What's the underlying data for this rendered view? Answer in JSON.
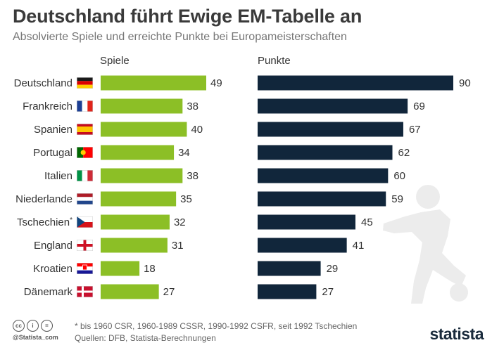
{
  "header": {
    "title": "Deutschland führt Ewige EM-Tabelle an",
    "subtitle": "Absolvierte Spiele und erreichte Punkte bei Europameisterschaften"
  },
  "chart_data": [
    {
      "type": "bar",
      "orientation": "horizontal",
      "label": "Spiele",
      "color": "#8cbf26",
      "categories": [
        "Deutschland",
        "Frankreich",
        "Spanien",
        "Portugal",
        "Italien",
        "Niederlande",
        "Tschechien*",
        "England",
        "Kroatien",
        "Dänemark"
      ],
      "values": [
        49,
        38,
        40,
        34,
        38,
        35,
        32,
        31,
        18,
        27
      ]
    },
    {
      "type": "bar",
      "orientation": "horizontal",
      "label": "Punkte",
      "color": "#11263b",
      "categories": [
        "Deutschland",
        "Frankreich",
        "Spanien",
        "Portugal",
        "Italien",
        "Niederlande",
        "Tschechien*",
        "England",
        "Kroatien",
        "Dänemark"
      ],
      "values": [
        90,
        69,
        67,
        62,
        60,
        59,
        45,
        41,
        29,
        27
      ]
    }
  ],
  "flags": [
    "flag-germany-icon",
    "flag-france-icon",
    "flag-spain-icon",
    "flag-portugal-icon",
    "flag-italy-icon",
    "flag-netherlands-icon",
    "flag-czechia-icon",
    "flag-england-icon",
    "flag-croatia-icon",
    "flag-denmark-icon"
  ],
  "footer": {
    "note": "* bis 1960 CSR, 1960-1989 CSSR, 1990-1992 CSFR, seit 1992 Tschechien",
    "source": "Quellen: DFB, Statista-Berechnungen",
    "handle": "@Statista_com",
    "brand": "statista",
    "cc_icons": [
      "cc-icon",
      "attribution-icon",
      "no-derivatives-icon"
    ]
  },
  "colors": {
    "background": "#ffffff",
    "green": "#8cbf26",
    "navy": "#11263b",
    "silhouette": "#ececec"
  }
}
